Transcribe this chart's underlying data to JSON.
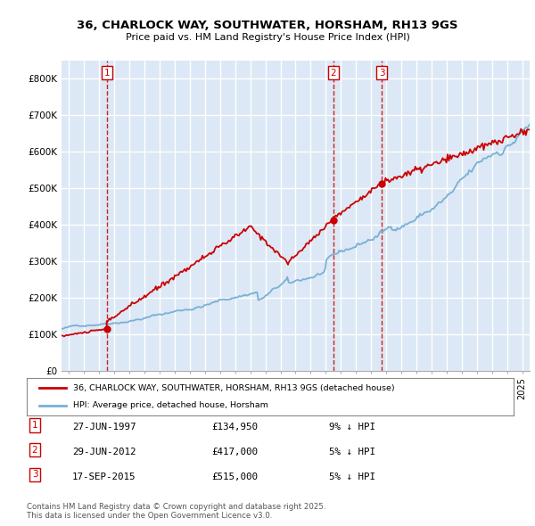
{
  "title_line1": "36, CHARLOCK WAY, SOUTHWATER, HORSHAM, RH13 9GS",
  "title_line2": "Price paid vs. HM Land Registry's House Price Index (HPI)",
  "red_line_label": "36, CHARLOCK WAY, SOUTHWATER, HORSHAM, RH13 9GS (detached house)",
  "blue_line_label": "HPI: Average price, detached house, Horsham",
  "transactions": [
    {
      "num": 1,
      "date": "27-JUN-1997",
      "price": 134950,
      "pct": "9%",
      "dir": "↓",
      "year_x": 1997.49
    },
    {
      "num": 2,
      "date": "29-JUN-2012",
      "price": 417000,
      "pct": "5%",
      "dir": "↓",
      "year_x": 2012.49
    },
    {
      "num": 3,
      "date": "17-SEP-2015",
      "price": 515000,
      "pct": "5%",
      "dir": "↓",
      "year_x": 2015.71
    }
  ],
  "footnote": "Contains HM Land Registry data © Crown copyright and database right 2025.\nThis data is licensed under the Open Government Licence v3.0.",
  "ylim": [
    0,
    850000
  ],
  "yticks": [
    0,
    100000,
    200000,
    300000,
    400000,
    500000,
    600000,
    700000,
    800000
  ],
  "ytick_labels": [
    "£0",
    "£100K",
    "£200K",
    "£300K",
    "£400K",
    "£500K",
    "£600K",
    "£700K",
    "£800K"
  ],
  "xlim_start": 1994.5,
  "xlim_end": 2025.5,
  "background_color": "#ffffff",
  "plot_bg_color": "#dce8f5",
  "grid_color": "#ffffff",
  "red_color": "#cc0000",
  "blue_color": "#7ab0d4",
  "dashed_color": "#cc0000"
}
